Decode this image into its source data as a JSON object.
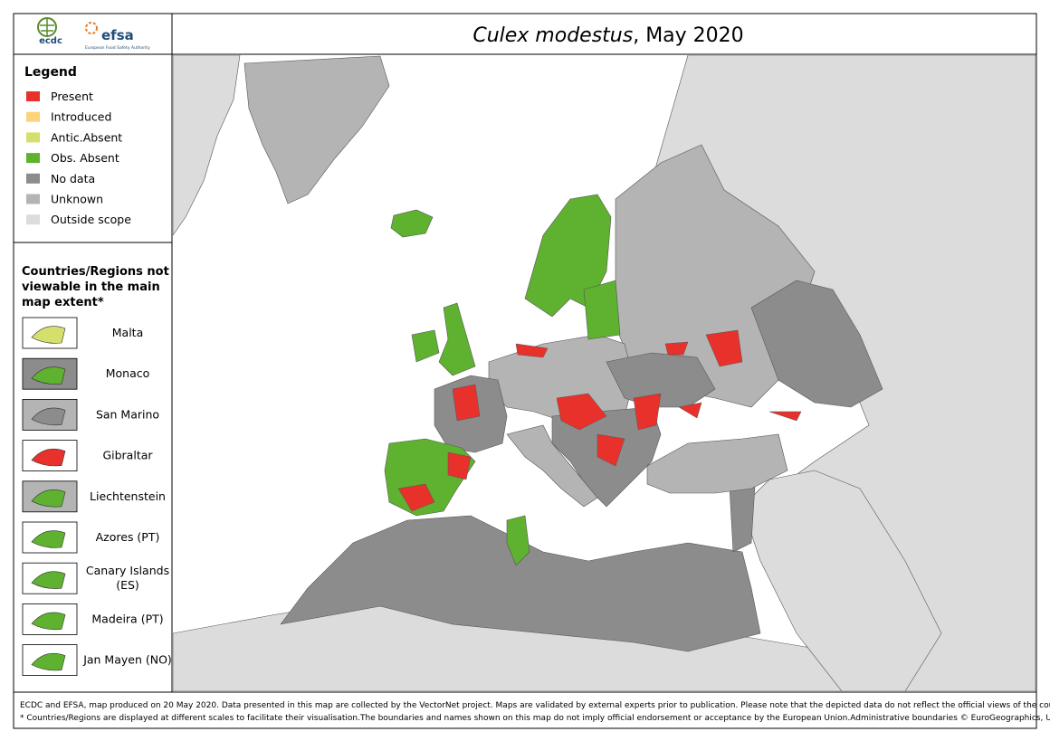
{
  "logos": {
    "ecdc": "ecdc",
    "efsa": "efsa",
    "efsa_subtitle": "European Food Safety Authority"
  },
  "title": {
    "species": "Culex modestus",
    "rest": ", May 2020"
  },
  "legend": {
    "title": "Legend",
    "items": [
      {
        "label": "Present",
        "color": "#e8312b"
      },
      {
        "label": "Introduced",
        "color": "#fdd27a"
      },
      {
        "label": "Antic.Absent",
        "color": "#d4e06b"
      },
      {
        "label": "Obs. Absent",
        "color": "#5fb22f"
      },
      {
        "label": "No data",
        "color": "#8c8c8c"
      },
      {
        "label": "Unknown",
        "color": "#b4b4b4"
      },
      {
        "label": "Outside scope",
        "color": "#dcdcdc"
      }
    ]
  },
  "insets": {
    "title": "Countries/Regions not viewable in the main map extent*",
    "items": [
      "Malta",
      "Monaco",
      "San Marino",
      "Gibraltar",
      "Liechtenstein",
      "Azores (PT)",
      "Canary Islands (ES)",
      "Madeira (PT)",
      "Jan Mayen (NO)"
    ]
  },
  "footer": {
    "lines": [
      "ECDC and EFSA, map produced on 20 May 2020. Data presented in this map are collected by the VectorNet project. Maps are validated by external experts prior to publication. Please note that the depicted data do not reflect the official views of the countries.",
      "* Countries/Regions are displayed at different scales to facilitate their visualisation.The boundaries and names shown on this map do not imply official endorsement or acceptance by the European Union.Administrative boundaries © EuroGeographics, UNFAO."
    ]
  }
}
